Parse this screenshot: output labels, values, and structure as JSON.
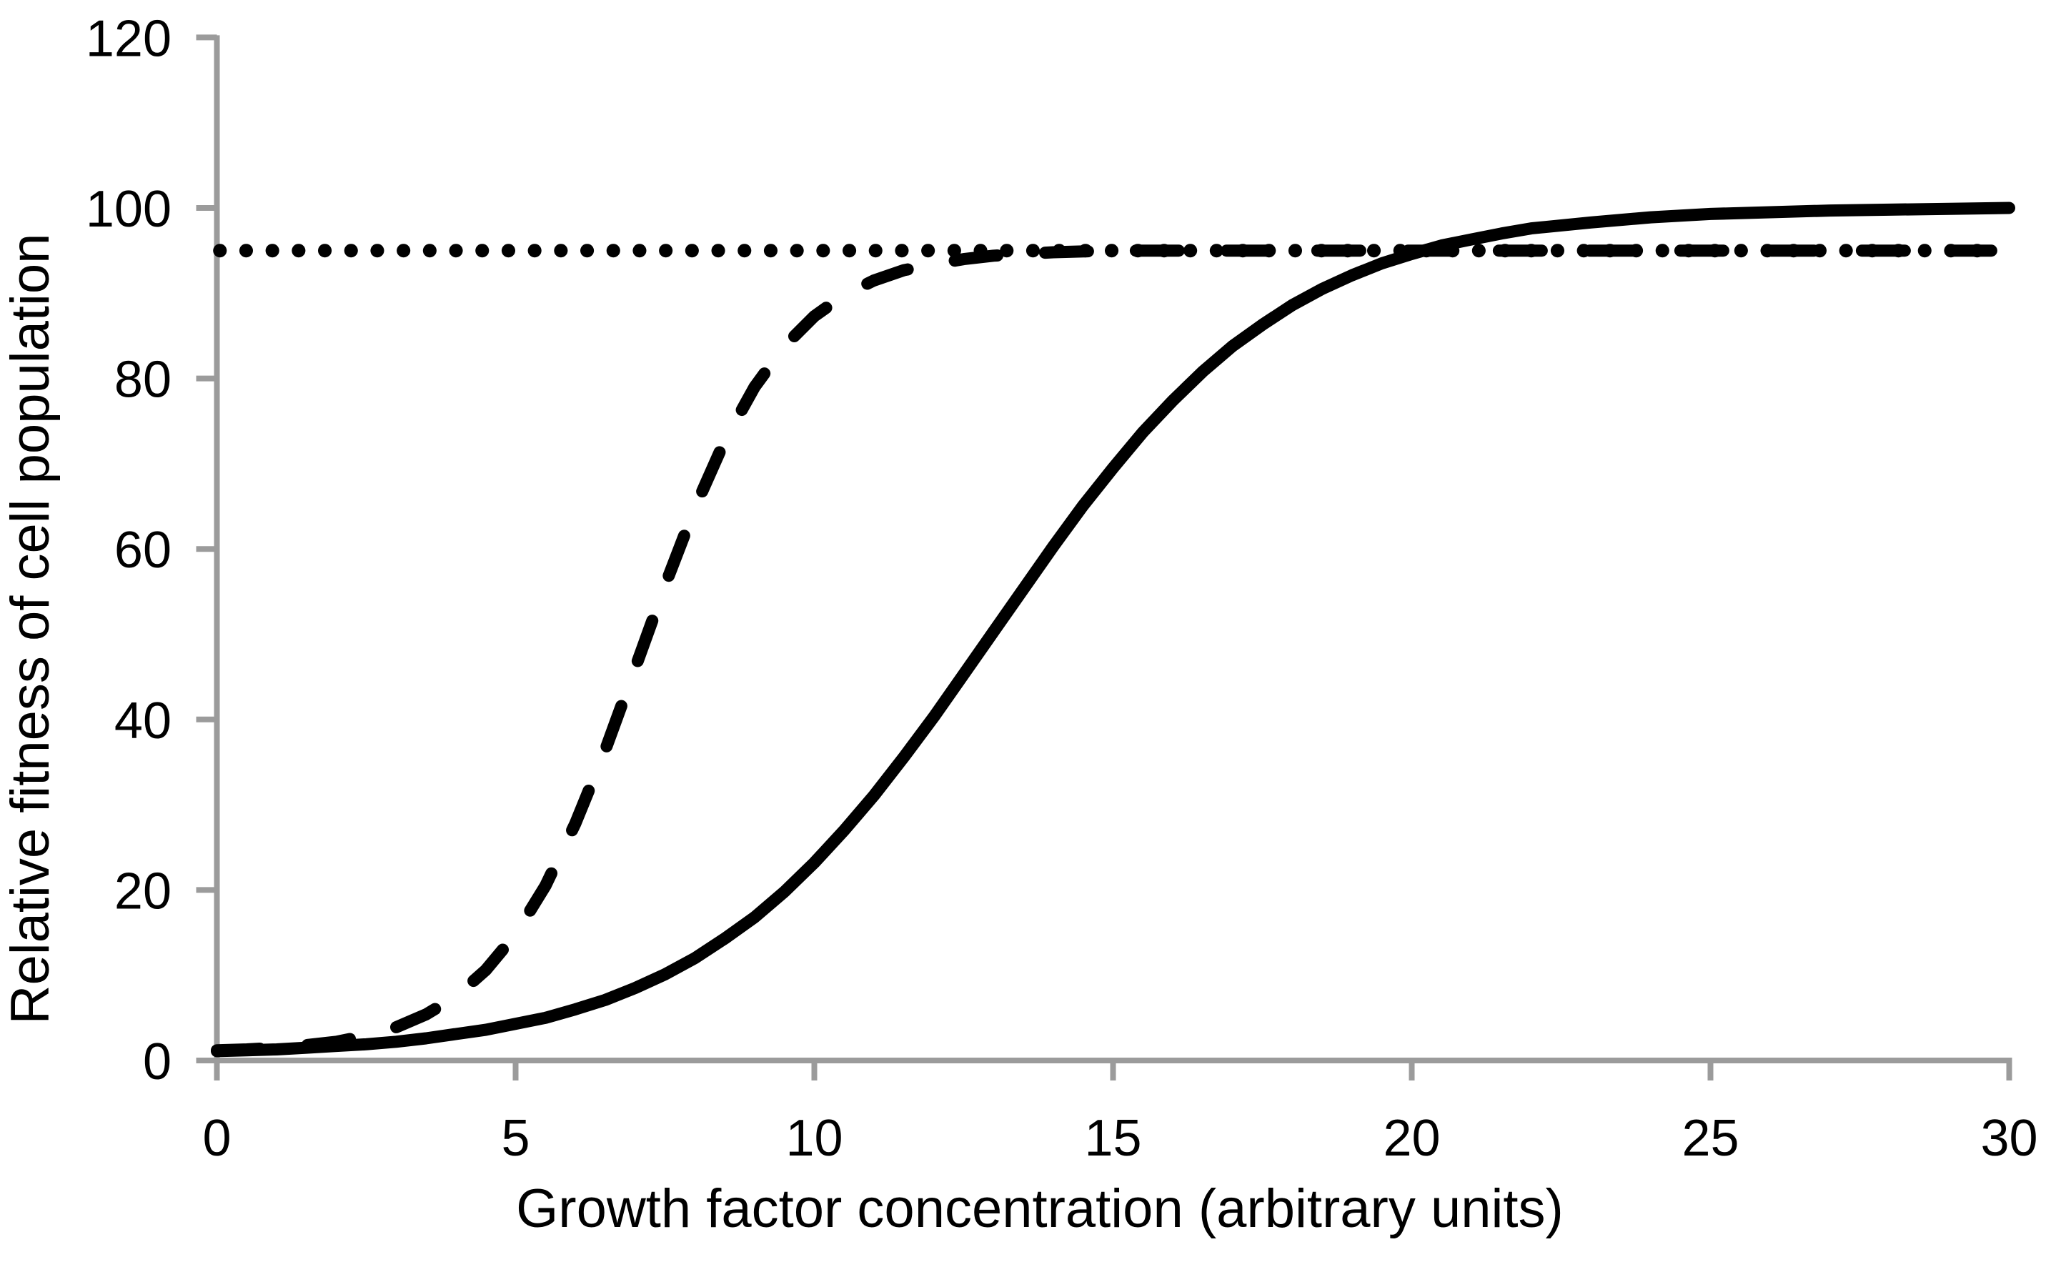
{
  "chart_data": {
    "type": "line",
    "title": "",
    "xlabel": "Growth factor concentration (arbitrary units)",
    "ylabel": "Relative fitness of cell population",
    "xlim": [
      0,
      30
    ],
    "ylim": [
      0,
      120
    ],
    "x_ticks": [
      0,
      5,
      10,
      15,
      20,
      25,
      30
    ],
    "y_ticks": [
      0,
      20,
      40,
      60,
      80,
      100,
      120
    ],
    "grid": false,
    "legend": "none",
    "axis_color": "#9b9b9b",
    "line_color": "#000000",
    "series": [
      {
        "name": "plateau-reference-dotted",
        "style": "dotted",
        "description": "horizontal dotted reference line at y=95",
        "points": [
          [
            0.05,
            95
          ],
          [
            29.8,
            95
          ]
        ]
      },
      {
        "name": "high-sensitivity-dashed-sigmoid",
        "style": "dashed",
        "description": "steep dashed sigmoid reaching plateau 95 near x=12; its plateau dashes over the dotted line create the dash-dot appearance",
        "points": [
          [
            0,
            1.2
          ],
          [
            0.5,
            1.3
          ],
          [
            1,
            1.5
          ],
          [
            1.5,
            1.8
          ],
          [
            2,
            2.2
          ],
          [
            2.5,
            2.9
          ],
          [
            3,
            3.9
          ],
          [
            3.5,
            5.4
          ],
          [
            4,
            7.5
          ],
          [
            4.5,
            10.6
          ],
          [
            5,
            14.8
          ],
          [
            5.5,
            20.5
          ],
          [
            6,
            27.8
          ],
          [
            6.5,
            36.4
          ],
          [
            7,
            46
          ],
          [
            7.5,
            55.7
          ],
          [
            8,
            64.8
          ],
          [
            8.5,
            72.7
          ],
          [
            9,
            79
          ],
          [
            9.5,
            83.8
          ],
          [
            10,
            87.3
          ],
          [
            10.5,
            89.8
          ],
          [
            11,
            91.5
          ],
          [
            11.5,
            92.7
          ],
          [
            12,
            93.4
          ],
          [
            12.5,
            94
          ],
          [
            13,
            94.4
          ],
          [
            14,
            94.8
          ],
          [
            15,
            95
          ],
          [
            17,
            95
          ],
          [
            19,
            95
          ],
          [
            21,
            95
          ],
          [
            23,
            95
          ],
          [
            25,
            95
          ],
          [
            27,
            95
          ],
          [
            29,
            95
          ],
          [
            29.7,
            95
          ]
        ]
      },
      {
        "name": "low-sensitivity-solid-sigmoid",
        "style": "solid",
        "description": "solid sigmoid, midpoint near x=13, plateau 100",
        "points": [
          [
            0,
            1.1
          ],
          [
            0.5,
            1.2
          ],
          [
            1,
            1.3
          ],
          [
            1.5,
            1.5
          ],
          [
            2,
            1.7
          ],
          [
            2.5,
            1.9
          ],
          [
            3,
            2.2
          ],
          [
            3.5,
            2.6
          ],
          [
            4,
            3.1
          ],
          [
            4.5,
            3.6
          ],
          [
            5,
            4.3
          ],
          [
            5.5,
            5.0
          ],
          [
            6,
            6.0
          ],
          [
            6.5,
            7.1
          ],
          [
            7,
            8.5
          ],
          [
            7.5,
            10.1
          ],
          [
            8,
            12.0
          ],
          [
            8.5,
            14.3
          ],
          [
            9,
            16.8
          ],
          [
            9.5,
            19.8
          ],
          [
            10,
            23.2
          ],
          [
            10.5,
            27.0
          ],
          [
            11,
            31.1
          ],
          [
            11.5,
            35.6
          ],
          [
            12,
            40.3
          ],
          [
            12.5,
            45.3
          ],
          [
            13,
            50.3
          ],
          [
            13.5,
            55.3
          ],
          [
            14,
            60.3
          ],
          [
            14.5,
            65.1
          ],
          [
            15,
            69.5
          ],
          [
            15.5,
            73.7
          ],
          [
            16,
            77.4
          ],
          [
            16.5,
            80.8
          ],
          [
            17,
            83.8
          ],
          [
            17.5,
            86.3
          ],
          [
            18,
            88.6
          ],
          [
            18.5,
            90.5
          ],
          [
            19,
            92.1
          ],
          [
            19.5,
            93.5
          ],
          [
            20,
            94.6
          ],
          [
            20.5,
            95.6
          ],
          [
            21,
            96.3
          ],
          [
            21.5,
            97.0
          ],
          [
            22,
            97.6
          ],
          [
            23,
            98.3
          ],
          [
            24,
            98.9
          ],
          [
            25,
            99.3
          ],
          [
            26,
            99.5
          ],
          [
            27,
            99.7
          ],
          [
            28,
            99.8
          ],
          [
            29,
            99.9
          ],
          [
            30,
            100
          ]
        ]
      }
    ]
  }
}
